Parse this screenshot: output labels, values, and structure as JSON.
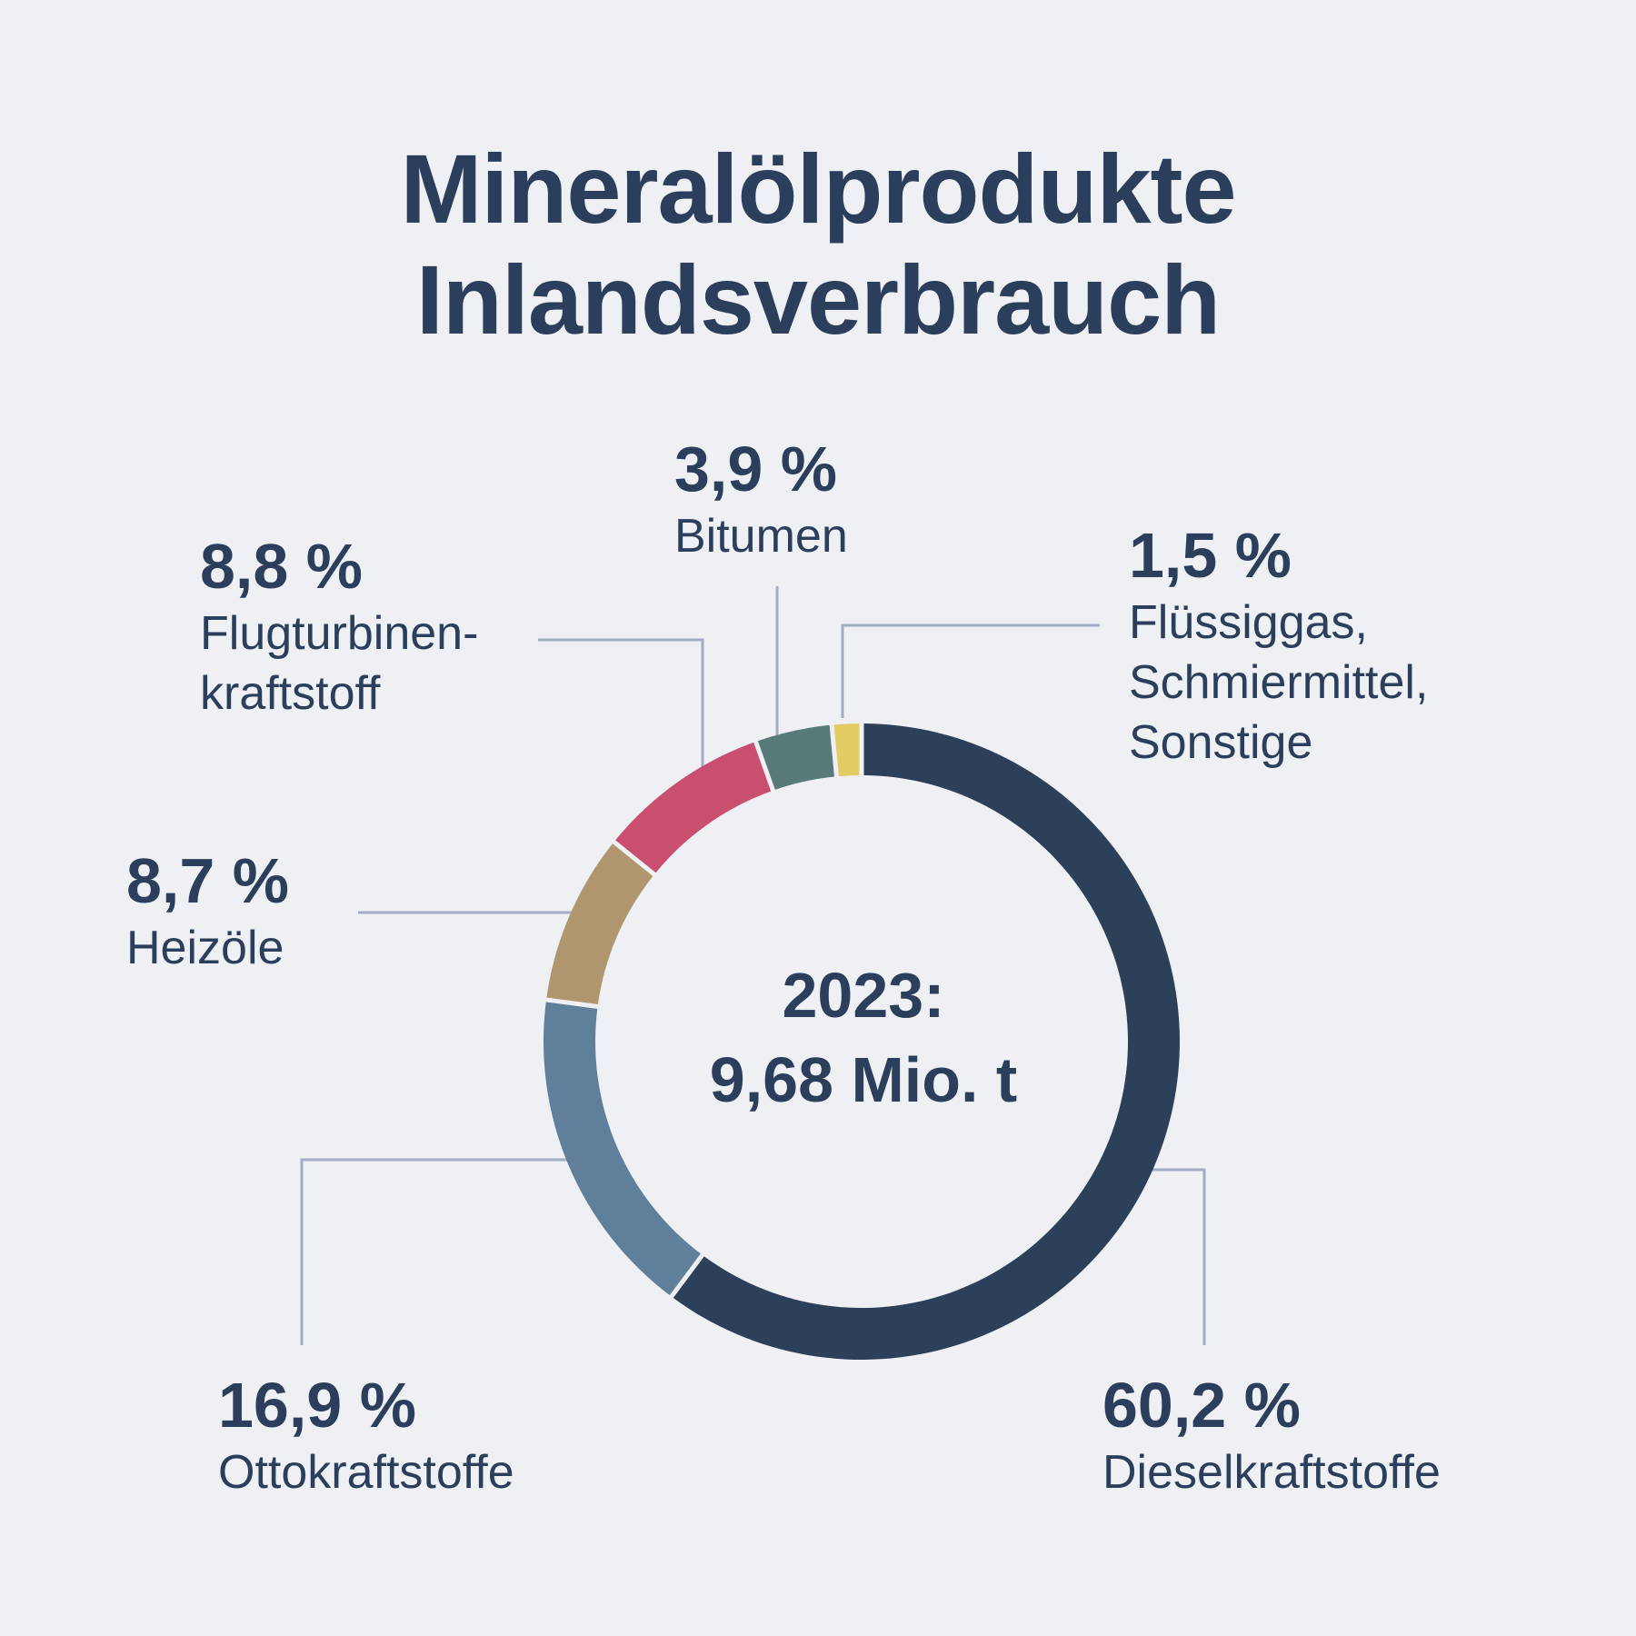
{
  "header": {
    "title_line1": "Mineralölprodukte",
    "title_line2": "Inlandsverbrauch"
  },
  "center": {
    "line1": "2023:",
    "line2": "9,68 Mio. t"
  },
  "chart_data": {
    "type": "pie",
    "variant": "donut",
    "title": "Mineralölprodukte Inlandsverbrauch",
    "subtitle": "2023: 9,68 Mio. t",
    "unit": "%",
    "slices": [
      {
        "key": "diesel",
        "label": "Dieselkraftstoffe",
        "pct_label": "60,2 %",
        "value": 60.2,
        "color": "#2d405a"
      },
      {
        "key": "otto",
        "label": "Ottokraftstoffe",
        "pct_label": "16,9 %",
        "value": 16.9,
        "color": "#5f7f9b"
      },
      {
        "key": "heizoele",
        "label": "Heizöle",
        "pct_label": "8,7 %",
        "value": 8.7,
        "color": "#b0966e"
      },
      {
        "key": "flug",
        "label": "Flugturbinen-\nkraftstoff",
        "pct_label": "8,8 %",
        "value": 8.8,
        "color": "#ca4e70"
      },
      {
        "key": "bitumen",
        "label": "Bitumen",
        "pct_label": "3,9 %",
        "value": 3.9,
        "color": "#587a78"
      },
      {
        "key": "fluessiggas",
        "label": "Flüssiggas,\nSchmiermittel,\nSonstige",
        "pct_label": "1,5 %",
        "value": 1.5,
        "color": "#e4cc65"
      }
    ]
  },
  "colors": {
    "background": "#eff0f4",
    "text": "#2b3f5c",
    "leader_line": "#a3acc4"
  }
}
